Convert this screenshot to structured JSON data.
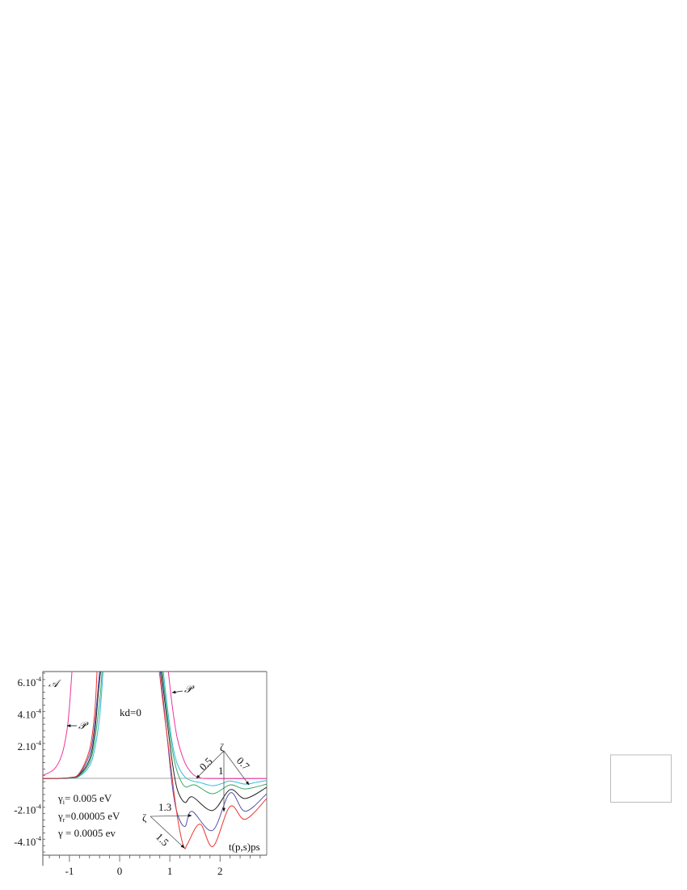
{
  "chart_data": {
    "type": "line",
    "title": "",
    "xlabel": "t(p,s)ps",
    "ylabel": "𝒜",
    "xlim": [
      -1.53,
      2.93
    ],
    "ylim": [
      -0.00048,
      0.00067
    ],
    "x_ticks": [
      {
        "v": -1,
        "label": "-1"
      },
      {
        "v": 0,
        "label": "0"
      },
      {
        "v": 1,
        "label": "1"
      },
      {
        "v": 2,
        "label": "2"
      }
    ],
    "y_ticks": [
      {
        "v": 0.0006,
        "base": "6.10",
        "exp": "-4"
      },
      {
        "v": 0.0004,
        "base": "4.10",
        "exp": "-4"
      },
      {
        "v": 0.0002,
        "base": "2.10",
        "exp": "-4"
      },
      {
        "v": -0.0002,
        "base": "-2.10",
        "exp": "-4"
      },
      {
        "v": -0.0004,
        "base": "-4.10",
        "exp": "-4"
      }
    ],
    "grid": false,
    "series": [
      {
        "name": "𝒫",
        "color": "#ee3399",
        "branches": [
          [
            [
              -1.53,
              2e-05
            ],
            [
              -1.3,
              6e-05
            ],
            [
              -1.15,
              0.00015
            ],
            [
              -1.05,
              0.0003
            ],
            [
              -1.0,
              0.00045
            ],
            [
              -0.95,
              0.00067
            ]
          ],
          [
            [
              0.97,
              0.00067
            ],
            [
              1.05,
              0.00045
            ],
            [
              1.15,
              0.00025
            ],
            [
              1.3,
              0.0001
            ],
            [
              1.45,
              3e-05
            ],
            [
              1.6,
              5e-06
            ],
            [
              1.8,
              0
            ],
            [
              2.93,
              0
            ]
          ]
        ]
      },
      {
        "name": "0.5",
        "color": "#33bbdd",
        "branches": [
          [
            [
              -1.53,
              0
            ],
            [
              -1.0,
              2e-06
            ],
            [
              -0.8,
              1.5e-05
            ],
            [
              -0.6,
              8e-05
            ],
            [
              -0.5,
              0.00018
            ],
            [
              -0.4,
              0.00038
            ],
            [
              -0.33,
              0.00067
            ]
          ],
          [
            [
              0.87,
              0.00067
            ],
            [
              0.95,
              0.00045
            ],
            [
              1.05,
              0.00022
            ],
            [
              1.15,
              9e-05
            ],
            [
              1.3,
              1e-05
            ],
            [
              1.45,
              -1.5e-05
            ],
            [
              1.6,
              -2.5e-05
            ],
            [
              1.85,
              -4.5e-05
            ],
            [
              2.05,
              -3e-05
            ],
            [
              2.2,
              -1.5e-05
            ],
            [
              2.5,
              -3.5e-05
            ],
            [
              2.7,
              -2.5e-05
            ],
            [
              2.93,
              -1.2e-05
            ]
          ]
        ]
      },
      {
        "name": "0.7",
        "color": "#33aa66",
        "branches": [
          [
            [
              -1.53,
              0
            ],
            [
              -1.0,
              3e-06
            ],
            [
              -0.8,
              2e-05
            ],
            [
              -0.6,
              0.0001
            ],
            [
              -0.5,
              0.00023
            ],
            [
              -0.4,
              0.00048
            ],
            [
              -0.35,
              0.00067
            ]
          ],
          [
            [
              0.85,
              0.00067
            ],
            [
              0.95,
              0.0004
            ],
            [
              1.05,
              0.00018
            ],
            [
              1.15,
              4e-05
            ],
            [
              1.3,
              -5e-05
            ],
            [
              1.5,
              -4e-05
            ],
            [
              1.85,
              -9.5e-05
            ],
            [
              2.2,
              -4e-05
            ],
            [
              2.5,
              -6.5e-05
            ],
            [
              2.93,
              -3.5e-05
            ]
          ]
        ]
      },
      {
        "name": "1",
        "color": "#222222",
        "branches": [
          [
            [
              -1.53,
              0
            ],
            [
              -1.0,
              4e-06
            ],
            [
              -0.8,
              2.5e-05
            ],
            [
              -0.6,
              0.00012
            ],
            [
              -0.5,
              0.00028
            ],
            [
              -0.42,
              0.00055
            ],
            [
              -0.38,
              0.00067
            ]
          ],
          [
            [
              0.83,
              0.00067
            ],
            [
              0.95,
              0.00035
            ],
            [
              1.05,
              0.0001
            ],
            [
              1.15,
              -7e-05
            ],
            [
              1.3,
              -0.00015
            ],
            [
              1.45,
              -0.000115
            ],
            [
              1.85,
              -0.0002
            ],
            [
              2.2,
              -7e-05
            ],
            [
              2.5,
              -0.000125
            ],
            [
              2.93,
              -5.5e-05
            ]
          ]
        ]
      },
      {
        "name": "1.3",
        "color": "#5555aa",
        "branches": [
          [
            [
              -1.53,
              0
            ],
            [
              -1.0,
              5e-06
            ],
            [
              -0.8,
              3e-05
            ],
            [
              -0.6,
              0.00015
            ],
            [
              -0.5,
              0.00033
            ],
            [
              -0.42,
              0.0006
            ],
            [
              -0.4,
              0.00067
            ]
          ],
          [
            [
              0.81,
              0.00067
            ],
            [
              0.95,
              0.00025
            ],
            [
              1.05,
              -5e-05
            ],
            [
              1.15,
              -0.00022
            ],
            [
              1.3,
              -0.0003
            ],
            [
              1.44,
              -0.000205
            ],
            [
              1.85,
              -0.000325
            ],
            [
              2.2,
              -9e-05
            ],
            [
              2.5,
              -0.000205
            ],
            [
              2.93,
              -9.5e-05
            ]
          ]
        ]
      },
      {
        "name": "1.5",
        "color": "#ee3333",
        "branches": [
          [
            [
              -1.53,
              0
            ],
            [
              -1.0,
              6e-06
            ],
            [
              -0.8,
              3.5e-05
            ],
            [
              -0.6,
              0.00018
            ],
            [
              -0.5,
              0.0004
            ],
            [
              -0.45,
              0.00067
            ]
          ],
          [
            [
              0.79,
              0.00067
            ],
            [
              0.9,
              0.00038
            ],
            [
              1.0,
              0.00013
            ],
            [
              1.1,
              -0.00013
            ],
            [
              1.2,
              -0.00033
            ],
            [
              1.29,
              -0.000435
            ],
            [
              1.35,
              -0.00041
            ],
            [
              1.6,
              -0.000285
            ],
            [
              1.86,
              -0.000425
            ],
            [
              2.2,
              -0.000175
            ],
            [
              2.5,
              -0.000255
            ],
            [
              2.93,
              -0.000125
            ]
          ]
        ]
      }
    ],
    "annotations": {
      "kd": "kd=0",
      "p_label": "𝒫",
      "zeta": "ζ",
      "zeta_values": [
        "0.5",
        "0.7",
        "1",
        "1.3",
        "1.5"
      ],
      "gamma_lines": [
        {
          "sym": "γ",
          "sub": "i",
          "text": "= 0.005 eV"
        },
        {
          "sym": "γ",
          "sub": "r",
          "text": "=0.00005 eV"
        },
        {
          "sym": "γ",
          "sub": "",
          "text": " = 0.0005 ev"
        }
      ]
    }
  }
}
